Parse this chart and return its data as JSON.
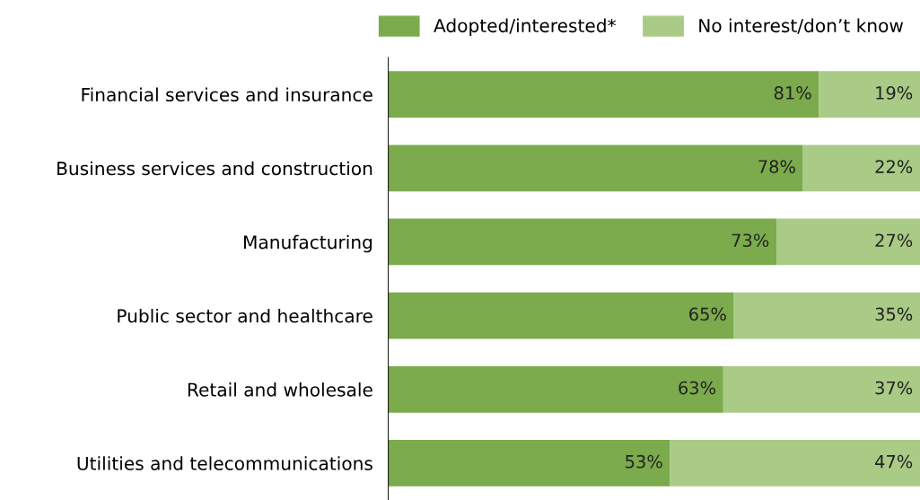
{
  "chart_data": {
    "type": "bar",
    "orientation": "horizontal",
    "stacked": true,
    "categories": [
      "Financial services and insurance",
      "Business services and construction",
      "Manufacturing",
      "Public sector and healthcare",
      "Retail and wholesale",
      "Utilities and telecommunications"
    ],
    "series": [
      {
        "name": "Adopted/interested*",
        "color": "#7bab4c",
        "values": [
          81,
          78,
          73,
          65,
          63,
          53
        ],
        "value_labels": [
          "81%",
          "78%",
          "73%",
          "65%",
          "63%",
          "53%"
        ]
      },
      {
        "name": "No interest/don’t know",
        "color": "#a9cb86",
        "values": [
          19,
          22,
          27,
          35,
          37,
          47
        ],
        "value_labels": [
          "19%",
          "22%",
          "27%",
          "35%",
          "37%",
          "47%"
        ]
      }
    ],
    "legend": "top right",
    "tick_labels": "y",
    "grid": false
  }
}
